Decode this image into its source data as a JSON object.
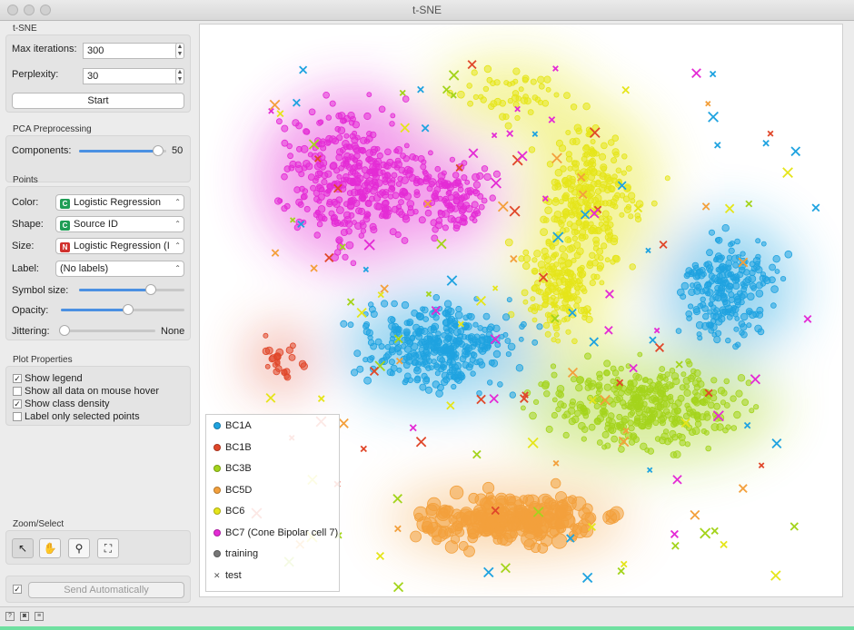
{
  "window": {
    "title": "t-SNE"
  },
  "tsne": {
    "section_title": "t-SNE",
    "max_iter_label": "Max iterations:",
    "max_iter_value": "300",
    "perplexity_label": "Perplexity:",
    "perplexity_value": "30",
    "start_label": "Start"
  },
  "pca": {
    "section_title": "PCA Preprocessing",
    "components_label": "Components:",
    "components_value": "50",
    "components_fraction": 0.96
  },
  "points": {
    "section_title": "Points",
    "color_label": "Color:",
    "color_value": "Logistic Regression",
    "shape_label": "Shape:",
    "shape_value": "Source ID",
    "size_label": "Size:",
    "size_value": "Logistic Regression (I",
    "label_label": "Label:",
    "label_value": "(No labels)",
    "symbol_size_label": "Symbol size:",
    "symbol_size_fraction": 0.7,
    "opacity_label": "Opacity:",
    "opacity_fraction": 0.55,
    "jittering_label": "Jittering:",
    "jittering_value": "None",
    "jittering_fraction": 0.0,
    "badge_c": "C",
    "badge_n": "N",
    "badge_c_color": "#1f9d55",
    "badge_n_color": "#d0312d"
  },
  "plot_properties": {
    "section_title": "Plot Properties",
    "show_legend": "Show legend",
    "show_all_data": "Show all data on mouse hover",
    "show_class_density": "Show class density",
    "label_selected": "Label only selected points"
  },
  "zoom": {
    "section_title": "Zoom/Select",
    "icons": [
      "pointer-icon",
      "pan-hand-icon",
      "zoom-icon",
      "fit-icon"
    ]
  },
  "send": {
    "label": "Send Automatically"
  },
  "legend": {
    "items": [
      {
        "label": "BC1A",
        "color": "#1fa3e0"
      },
      {
        "label": "BC1B",
        "color": "#e0472a"
      },
      {
        "label": "BC3B",
        "color": "#a4d41c"
      },
      {
        "label": "BC5D",
        "color": "#f3a03c"
      },
      {
        "label": "BC6",
        "color": "#e5e51a"
      },
      {
        "label": "BC7 (Cone Bipolar cell 7)",
        "color": "#e42bd5"
      },
      {
        "label": "training",
        "color": "#777777"
      },
      {
        "label": "test",
        "color": "#555555"
      }
    ]
  }
}
